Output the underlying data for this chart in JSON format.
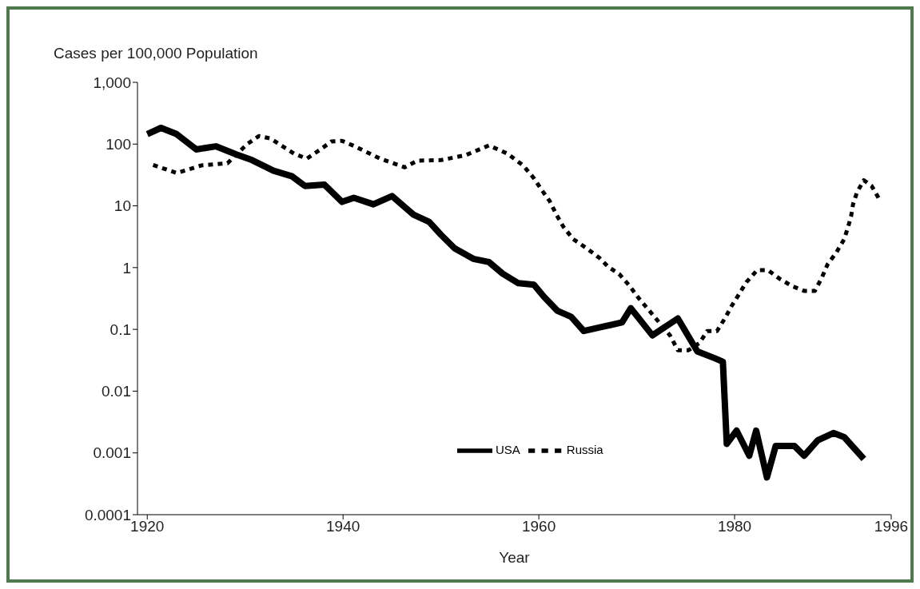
{
  "chart_data": {
    "type": "line",
    "ylabel": "Cases per 100,000 Population",
    "xlabel": "Year",
    "log": "y",
    "xlim": [
      1919,
      1996
    ],
    "xticks": [
      1920,
      1940,
      1960,
      1980,
      1996
    ],
    "ylim": [
      0.0001,
      1000
    ],
    "yticks": [
      {
        "value": 1000,
        "label": "1,000"
      },
      100,
      10,
      1,
      0.1,
      0.01,
      0.001,
      0.0001
    ],
    "grid": false,
    "legend": "bottom",
    "marker": "none",
    "series": [
      {
        "name": "USA",
        "color": "#000000",
        "line_style": "solid",
        "x": [
          1920,
          1921.4,
          1923,
          1925,
          1927,
          1929.1,
          1930.7,
          1932.9,
          1934.8,
          1936.1,
          1938.1,
          1939.9,
          1941.1,
          1943.1,
          1945,
          1947.2,
          1948.8,
          1950,
          1951.4,
          1953.3,
          1954.9,
          1956.3,
          1957.9,
          1959.5,
          1960.5,
          1961.9,
          1963.3,
          1964.6,
          1966.5,
          1968.5,
          1969.4,
          1971.6,
          1974.2,
          1976.2,
          1978,
          1978.8,
          1979.2,
          1980.2,
          1981.5,
          1982.2,
          1983.3,
          1984.2,
          1986.1,
          1987.1,
          1988.5,
          1990.1,
          1991.2,
          1993.2
        ],
        "values": [
          145,
          183,
          145,
          82,
          92,
          68,
          55,
          37,
          30,
          21,
          22,
          11.6,
          13.5,
          10.6,
          14.4,
          7.2,
          5.5,
          3.4,
          2.05,
          1.39,
          1.23,
          0.8,
          0.56,
          0.53,
          0.34,
          0.2,
          0.16,
          0.094,
          0.11,
          0.13,
          0.22,
          0.08,
          0.15,
          0.044,
          0.034,
          0.03,
          0.0014,
          0.0023,
          0.0009,
          0.0023,
          0.0004,
          0.0013,
          0.0013,
          0.0009,
          0.0016,
          0.0021,
          0.0018,
          0.0008
        ]
      },
      {
        "name": "Russia",
        "color": "#000000",
        "line_style": "dashed",
        "x": [
          1920.6,
          1923,
          1925.5,
          1928.2,
          1930.2,
          1931.4,
          1932.6,
          1935,
          1936.3,
          1937.6,
          1938.8,
          1939.9,
          1941.2,
          1943.8,
          1946.3,
          1947.6,
          1950,
          1952.5,
          1954.9,
          1956.8,
          1958.4,
          1959.5,
          1960.3,
          1961.1,
          1961.8,
          1962.5,
          1963.5,
          1964.9,
          1966.2,
          1967.1,
          1968.2,
          1969.3,
          1970.2,
          1971.3,
          1973.4,
          1974.2,
          1975.3,
          1976.4,
          1977.2,
          1978.2,
          1979,
          1979.7,
          1980.4,
          1981.2,
          1982.3,
          1983.4,
          1984.6,
          1985.9,
          1987.1,
          1988.2,
          1988.9,
          1989.5,
          1990.4,
          1991.2,
          1991.6,
          1991.9,
          1992.1,
          1992.5,
          1993.2,
          1994,
          1994.7
        ],
        "values": [
          46,
          34,
          45,
          49,
          100,
          135,
          123,
          70,
          58,
          80,
          110,
          113,
          92,
          58,
          42,
          54,
          55,
          66,
          95,
          70,
          45,
          28,
          18,
          12,
          7.2,
          4.6,
          2.9,
          2.05,
          1.43,
          1.03,
          0.79,
          0.5,
          0.32,
          0.2,
          0.08,
          0.046,
          0.046,
          0.06,
          0.094,
          0.094,
          0.15,
          0.24,
          0.36,
          0.58,
          0.91,
          0.91,
          0.66,
          0.5,
          0.42,
          0.42,
          0.68,
          1.13,
          1.76,
          2.9,
          4.6,
          6.8,
          10.6,
          16.6,
          26,
          21,
          13.5
        ]
      }
    ]
  }
}
